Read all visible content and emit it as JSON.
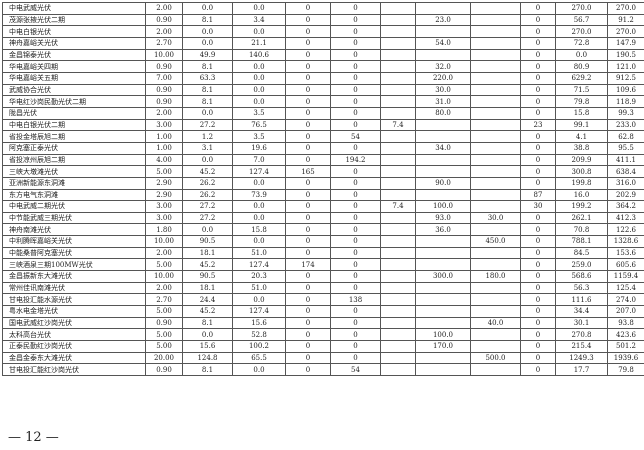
{
  "rows": [
    [
      "中电武威光伏",
      "2.00",
      "0.0",
      "0.0",
      "0",
      "0",
      "",
      "",
      "",
      "0",
      "270.0",
      "270.0"
    ],
    [
      "茂源张掖光伏二期",
      "0.90",
      "8.1",
      "3.4",
      "0",
      "0",
      "",
      "23.0",
      "",
      "0",
      "56.7",
      "91.2"
    ],
    [
      "中电白银光伏",
      "2.00",
      "0.0",
      "0.0",
      "0",
      "0",
      "",
      "",
      "",
      "0",
      "270.0",
      "270.0"
    ],
    [
      "神舟嘉峪关光伏",
      "2.70",
      "0.0",
      "21.1",
      "0",
      "0",
      "",
      "54.0",
      "",
      "0",
      "72.8",
      "147.9"
    ],
    [
      "金昌锦泰光伏",
      "10.00",
      "49.9",
      "140.6",
      "0",
      "0",
      "",
      "",
      "",
      "0",
      "0.0",
      "190.5"
    ],
    [
      "华电嘉峪关四期",
      "0.90",
      "8.1",
      "0.0",
      "0",
      "0",
      "",
      "32.0",
      "",
      "0",
      "80.9",
      "121.0"
    ],
    [
      "华电嘉峪关五期",
      "7.00",
      "63.3",
      "0.0",
      "0",
      "0",
      "",
      "220.0",
      "",
      "0",
      "629.2",
      "912.5"
    ],
    [
      "武威协合光伏",
      "0.90",
      "8.1",
      "0.0",
      "0",
      "0",
      "",
      "30.0",
      "",
      "0",
      "71.5",
      "109.6"
    ],
    [
      "华电红沙岗民勤光伏二期",
      "0.90",
      "8.1",
      "0.0",
      "0",
      "0",
      "",
      "31.0",
      "",
      "0",
      "79.8",
      "118.9"
    ],
    [
      "陇昌光伏",
      "2.00",
      "0.0",
      "3.5",
      "0",
      "0",
      "",
      "80.0",
      "",
      "0",
      "15.8",
      "99.3"
    ],
    [
      "中电白银光伏二期",
      "3.00",
      "27.2",
      "76.5",
      "0",
      "0",
      "7.4",
      "",
      "",
      "23",
      "99.1",
      "233.0"
    ],
    [
      "省投金塔辰旭二期",
      "1.00",
      "1.2",
      "3.5",
      "0",
      "54",
      "",
      "",
      "",
      "0",
      "4.1",
      "62.8"
    ],
    [
      "阿克塞正泰光伏",
      "1.00",
      "3.1",
      "19.6",
      "0",
      "0",
      "",
      "34.0",
      "",
      "0",
      "38.8",
      "95.5"
    ],
    [
      "省投凉州辰旭二期",
      "4.00",
      "0.0",
      "7.0",
      "0",
      "194.2",
      "",
      "",
      "",
      "0",
      "209.9",
      "411.1"
    ],
    [
      "三峡大墩滩光伏",
      "5.00",
      "45.2",
      "127.4",
      "165",
      "0",
      "",
      "",
      "",
      "0",
      "300.8",
      "638.4"
    ],
    [
      "亚洲新能源东洞滩",
      "2.90",
      "26.2",
      "0.0",
      "0",
      "0",
      "",
      "90.0",
      "",
      "0",
      "199.8",
      "316.0"
    ],
    [
      "东方电气东洞滩",
      "2.90",
      "26.2",
      "73.9",
      "0",
      "0",
      "",
      "",
      "",
      "87",
      "16.0",
      "202.9"
    ],
    [
      "中电武威二期光伏",
      "3.00",
      "27.2",
      "0.0",
      "0",
      "0",
      "7.4",
      "100.0",
      "",
      "30",
      "199.2",
      "364.2"
    ],
    [
      "中节能武威三期光伏",
      "3.00",
      "27.2",
      "0.0",
      "0",
      "0",
      "",
      "93.0",
      "30.0",
      "0",
      "262.1",
      "412.3"
    ],
    [
      "神舟南滩光伏",
      "1.80",
      "0.0",
      "15.8",
      "0",
      "0",
      "",
      "36.0",
      "",
      "0",
      "70.8",
      "122.6"
    ],
    [
      "中利腾晖嘉峪关光伏",
      "10.00",
      "90.5",
      "0.0",
      "0",
      "0",
      "",
      "",
      "450.0",
      "0",
      "788.1",
      "1328.6"
    ],
    [
      "中能桑普阿克塞光伏",
      "2.00",
      "18.1",
      "51.0",
      "0",
      "0",
      "",
      "",
      "",
      "0",
      "84.5",
      "153.6"
    ],
    [
      "三峡酒泉三期100MW光伏",
      "5.00",
      "45.2",
      "127.4",
      "174",
      "0",
      "",
      "",
      "",
      "0",
      "259.0",
      "605.6"
    ],
    [
      "金昌振新东大滩光伏",
      "10.00",
      "90.5",
      "20.3",
      "0",
      "0",
      "",
      "300.0",
      "180.0",
      "0",
      "568.6",
      "1159.4"
    ],
    [
      "常州佳讯南滩光伏",
      "2.00",
      "18.1",
      "51.0",
      "0",
      "0",
      "",
      "",
      "",
      "0",
      "56.3",
      "125.4"
    ],
    [
      "甘电投汇能水源光伏",
      "2.70",
      "24.4",
      "0.0",
      "0",
      "138",
      "",
      "",
      "",
      "0",
      "111.6",
      "274.0"
    ],
    [
      "粤水电金塔光伏",
      "5.00",
      "45.2",
      "127.4",
      "0",
      "0",
      "",
      "",
      "",
      "0",
      "34.4",
      "207.0"
    ],
    [
      "国电武威红沙岗光伏",
      "0.90",
      "8.1",
      "15.6",
      "0",
      "0",
      "",
      "",
      "40.0",
      "0",
      "30.1",
      "93.8"
    ],
    [
      "太科高台光伏",
      "5.00",
      "0.0",
      "52.8",
      "0",
      "0",
      "",
      "100.0",
      "",
      "0",
      "270.8",
      "423.6"
    ],
    [
      "正泰民勤红沙岗光伏",
      "5.00",
      "15.6",
      "100.2",
      "0",
      "0",
      "",
      "170.0",
      "",
      "0",
      "215.4",
      "501.2"
    ],
    [
      "金昌金泰东大滩光伏",
      "20.00",
      "124.8",
      "65.5",
      "0",
      "0",
      "",
      "",
      "500.0",
      "0",
      "1249.3",
      "1939.6"
    ],
    [
      "甘电投汇能红沙岗光伏",
      "0.90",
      "8.1",
      "0.0",
      "0",
      "54",
      "",
      "",
      "",
      "0",
      "17.7",
      "79.8"
    ]
  ],
  "page_number": "— 12 —"
}
